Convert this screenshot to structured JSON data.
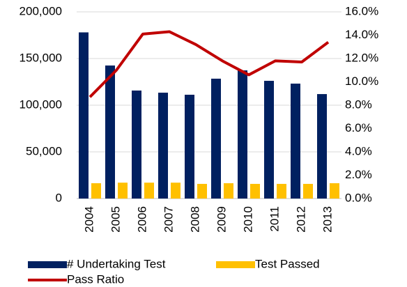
{
  "chart_data": {
    "type": "bar",
    "categories": [
      "2004",
      "2005",
      "2006",
      "2007",
      "2008",
      "2009",
      "2010",
      "2011",
      "2012",
      "2013"
    ],
    "series": [
      {
        "name": "# Undertaking Test",
        "color": "#002060",
        "values": [
          178000,
          142500,
          115700,
          113400,
          111200,
          128400,
          137300,
          126100,
          123100,
          111900
        ]
      },
      {
        "name": "Test Passed",
        "color": "#ffc000",
        "values": [
          16400,
          17000,
          17000,
          17000,
          15700,
          16400,
          15700,
          15700,
          15700,
          16400
        ]
      },
      {
        "name": "Pass Ratio",
        "color": "#c00000",
        "axis": "y2",
        "type": "line",
        "values": [
          8.7,
          11.0,
          14.1,
          14.3,
          13.2,
          11.8,
          10.6,
          11.8,
          11.7,
          13.4
        ]
      }
    ],
    "ylim": [
      0,
      200000
    ],
    "yticks": [
      0,
      {
        "value": 50000,
        "label": "50,000"
      },
      {
        "value": 100000,
        "label": "100,000"
      },
      {
        "value": 150000,
        "label": "150,000"
      },
      {
        "value": 200000,
        "label": "200,000"
      }
    ],
    "y2lim": [
      0,
      16
    ],
    "y2ticks": [
      {
        "value": 0,
        "label": "0.0%"
      },
      {
        "value": 2,
        "label": "2.0%"
      },
      {
        "value": 4,
        "label": "4.0%"
      },
      {
        "value": 6,
        "label": "6.0%"
      },
      {
        "value": 8,
        "label": "8.0%"
      },
      {
        "value": 10,
        "label": "10.0%"
      },
      {
        "value": 12,
        "label": "12.0%"
      },
      {
        "value": 14,
        "label": "14.0%"
      },
      {
        "value": 16,
        "label": "16.0%"
      }
    ],
    "grid": true
  }
}
